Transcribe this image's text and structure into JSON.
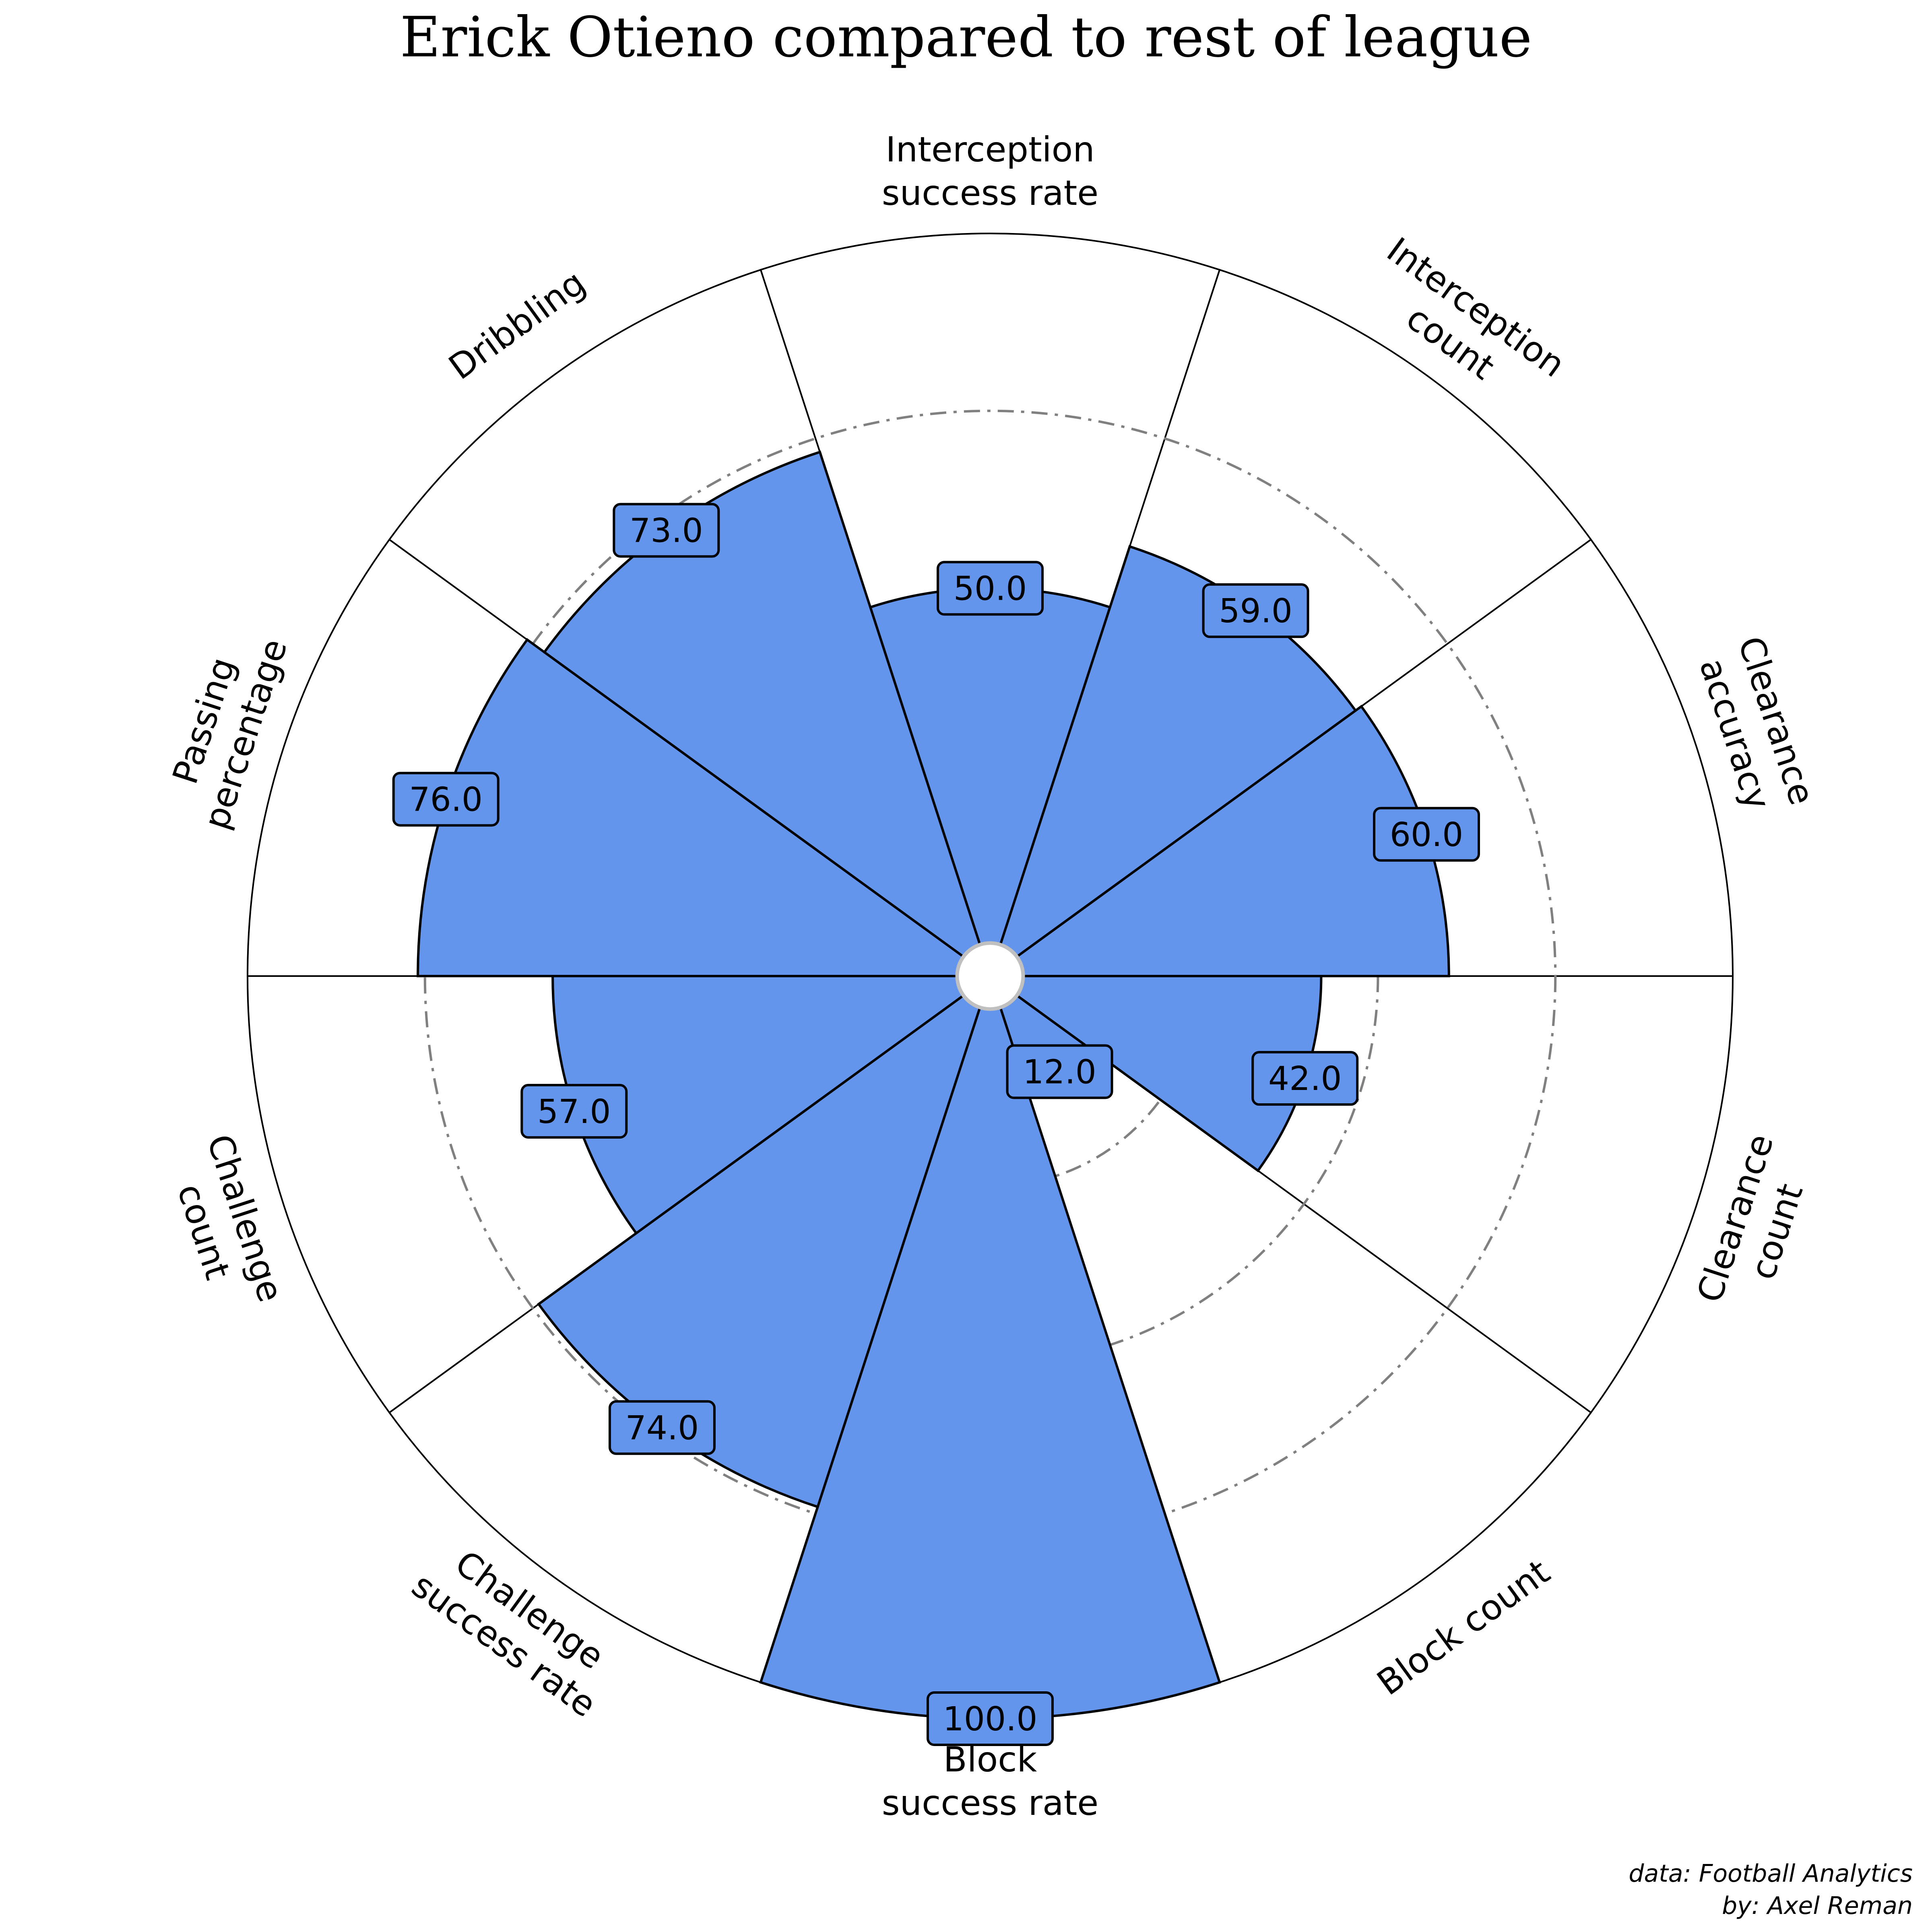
{
  "chart_data": {
    "type": "pizza",
    "title": "Erick Otieno compared to rest of league",
    "categories": [
      "Interception\nsuccess rate",
      "Interception\ncount",
      "Clearance\naccuracy",
      "Clearance\ncount",
      "Block count",
      "Block\nsuccess rate",
      "Challenge\nsuccess rate",
      "Challenge\ncount",
      "Passing\npercentage",
      "Dribbling"
    ],
    "values": [
      50,
      59,
      60,
      42,
      12,
      100,
      74,
      57,
      76,
      73
    ],
    "value_labels": [
      "50.0",
      "59.0",
      "60.0",
      "42.0",
      "12.0",
      "100.0",
      "74.0",
      "57.0",
      "76.0",
      "73.0"
    ],
    "rlim": [
      0,
      100
    ],
    "gridlines": [
      25,
      50,
      75
    ],
    "grid": true,
    "slice_color": "#6495ed",
    "edge_color": "#000000",
    "gridline_color": "#808080",
    "background": "#ffffff"
  },
  "credits": {
    "line1": "data: Football Analytics",
    "line2": "by: Axel Reman"
  }
}
